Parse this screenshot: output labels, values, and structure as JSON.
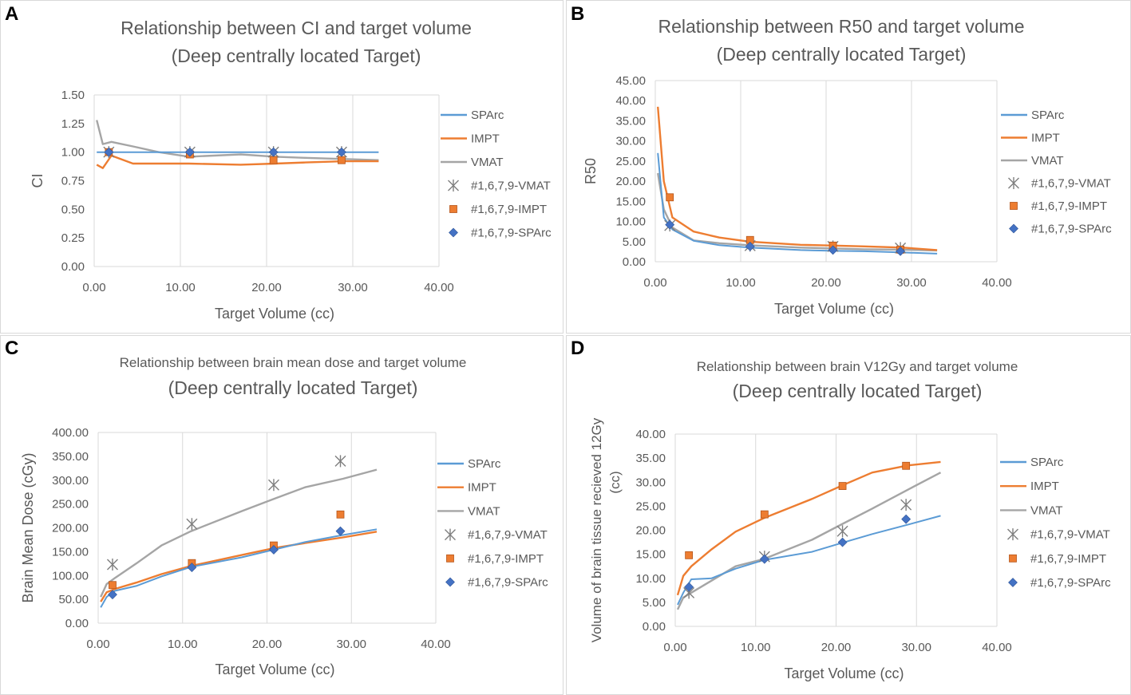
{
  "colors": {
    "sparc": "#5b9bd5",
    "impt": "#ed7d31",
    "vmat": "#a5a5a5",
    "sparc_marker": "#4472c4",
    "grid": "#d9d9d9",
    "text": "#595959"
  },
  "chart_data": [
    {
      "panel": "A",
      "type": "line",
      "title": "Relationship between CI and target volume",
      "subtitle": "(Deep centrally located Target)",
      "xlabel": "Target Volume (cc)",
      "ylabel": "CI",
      "xlim": [
        0,
        40
      ],
      "ylim": [
        0,
        1.5
      ],
      "xticks": [
        "0.00",
        "10.00",
        "20.00",
        "30.00",
        "40.00"
      ],
      "yticks": [
        "0.00",
        "0.25",
        "0.50",
        "0.75",
        "1.00",
        "1.25",
        "1.50"
      ],
      "series": [
        {
          "name": "SPArc",
          "kind": "line",
          "color": "#5b9bd5",
          "x": [
            0.3,
            1.0,
            2.0,
            4.5,
            7.5,
            11,
            17,
            21,
            24.5,
            29,
            33
          ],
          "y": [
            1.0,
            1.0,
            1.0,
            1.0,
            1.0,
            1.0,
            1.0,
            1.0,
            1.0,
            1.0,
            1.0
          ]
        },
        {
          "name": "IMPT",
          "kind": "line",
          "color": "#ed7d31",
          "x": [
            0.3,
            1.0,
            2.0,
            4.5,
            7.5,
            11,
            17,
            21,
            24.5,
            29,
            33
          ],
          "y": [
            0.89,
            0.86,
            0.97,
            0.9,
            0.9,
            0.9,
            0.89,
            0.9,
            0.91,
            0.92,
            0.92
          ]
        },
        {
          "name": "VMAT",
          "kind": "line",
          "color": "#a5a5a5",
          "x": [
            0.3,
            1.0,
            2.0,
            4.5,
            7.5,
            11,
            17,
            21,
            24.5,
            29,
            33
          ],
          "y": [
            1.28,
            1.07,
            1.09,
            1.05,
            1.0,
            0.96,
            0.98,
            0.96,
            0.95,
            0.94,
            0.93
          ]
        },
        {
          "name": "#1,6,7,9-VMAT",
          "kind": "star",
          "color": "#7f7f7f",
          "x": [
            1.7,
            11.1,
            20.8,
            28.7
          ],
          "y": [
            1.0,
            1.0,
            1.0,
            1.0
          ]
        },
        {
          "name": "#1,6,7,9-IMPT",
          "kind": "square",
          "color": "#ed7d31",
          "x": [
            1.7,
            11.1,
            20.8,
            28.7
          ],
          "y": [
            1.0,
            0.98,
            0.93,
            0.93
          ]
        },
        {
          "name": "#1,6,7,9-SPArc",
          "kind": "diamond",
          "color": "#4472c4",
          "x": [
            1.7,
            11.1,
            20.8,
            28.7
          ],
          "y": [
            1.0,
            1.0,
            1.0,
            1.0
          ]
        }
      ]
    },
    {
      "panel": "B",
      "type": "line",
      "title": "Relationship between R50 and target volume",
      "subtitle": "(Deep centrally located Target)",
      "xlabel": "Target Volume (cc)",
      "ylabel": "R50",
      "xlim": [
        0,
        40
      ],
      "ylim": [
        0,
        45
      ],
      "xticks": [
        "0.00",
        "10.00",
        "20.00",
        "30.00",
        "40.00"
      ],
      "yticks": [
        "0.00",
        "5.00",
        "10.00",
        "15.00",
        "20.00",
        "25.00",
        "30.00",
        "35.00",
        "40.00",
        "45.00"
      ],
      "series": [
        {
          "name": "SPArc",
          "kind": "line",
          "color": "#5b9bd5",
          "x": [
            0.3,
            1.0,
            2.0,
            4.5,
            7.5,
            11,
            17,
            21,
            24.5,
            29,
            33
          ],
          "y": [
            27,
            11,
            8,
            5.2,
            4.1,
            3.5,
            2.9,
            2.7,
            2.6,
            2.3,
            2.0
          ]
        },
        {
          "name": "IMPT",
          "kind": "line",
          "color": "#ed7d31",
          "x": [
            0.3,
            1.0,
            2.0,
            4.5,
            7.5,
            11,
            17,
            21,
            24.5,
            29,
            33
          ],
          "y": [
            38.5,
            20,
            11,
            7.5,
            6.0,
            5.0,
            4.2,
            4.0,
            3.8,
            3.5,
            2.9
          ]
        },
        {
          "name": "VMAT",
          "kind": "line",
          "color": "#a5a5a5",
          "x": [
            0.3,
            1.0,
            2.0,
            4.5,
            7.5,
            11,
            17,
            21,
            24.5,
            29,
            33
          ],
          "y": [
            22,
            13,
            8.5,
            5.3,
            4.6,
            4.1,
            3.5,
            3.3,
            3.1,
            3.0,
            2.8
          ]
        },
        {
          "name": "#1,6,7,9-VMAT",
          "kind": "star",
          "color": "#7f7f7f",
          "x": [
            1.7,
            11.1,
            20.8,
            28.7
          ],
          "y": [
            9.0,
            4.0,
            3.8,
            3.4
          ]
        },
        {
          "name": "#1,6,7,9-IMPT",
          "kind": "square",
          "color": "#ed7d31",
          "x": [
            1.7,
            11.1,
            20.8,
            28.7
          ],
          "y": [
            16.0,
            5.4,
            4.0,
            3.0
          ]
        },
        {
          "name": "#1,6,7,9-SPArc",
          "kind": "diamond",
          "color": "#4472c4",
          "x": [
            1.7,
            11.1,
            20.8,
            28.7
          ],
          "y": [
            9.2,
            3.8,
            2.9,
            2.6
          ]
        }
      ]
    },
    {
      "panel": "C",
      "type": "line",
      "title": "Relationship between brain mean dose and target volume",
      "subtitle": "(Deep centrally located Target)",
      "xlabel": "Target Volume (cc)",
      "ylabel": "Brain Mean Dose (cGy)",
      "xlim": [
        0,
        40
      ],
      "ylim": [
        0,
        400
      ],
      "xticks": [
        "0.00",
        "10.00",
        "20.00",
        "30.00",
        "40.00"
      ],
      "yticks": [
        "0.00",
        "50.00",
        "100.00",
        "150.00",
        "200.00",
        "250.00",
        "300.00",
        "350.00",
        "400.00"
      ],
      "series": [
        {
          "name": "SPArc",
          "kind": "line",
          "color": "#5b9bd5",
          "x": [
            0.3,
            1.0,
            2.0,
            4.5,
            7.5,
            11,
            17,
            21,
            24.5,
            29,
            33
          ],
          "y": [
            33,
            55,
            68,
            78,
            98,
            118,
            138,
            155,
            170,
            185,
            197
          ]
        },
        {
          "name": "IMPT",
          "kind": "line",
          "color": "#ed7d31",
          "x": [
            0.3,
            1.0,
            2.0,
            4.5,
            7.5,
            11,
            17,
            21,
            24.5,
            29,
            33
          ],
          "y": [
            45,
            65,
            72,
            85,
            103,
            120,
            143,
            158,
            168,
            180,
            192
          ]
        },
        {
          "name": "VMAT",
          "kind": "line",
          "color": "#a5a5a5",
          "x": [
            0.3,
            1.0,
            2.0,
            4.5,
            7.5,
            11,
            17,
            21,
            24.5,
            29,
            33
          ],
          "y": [
            55,
            82,
            95,
            125,
            163,
            193,
            235,
            262,
            285,
            303,
            322
          ]
        },
        {
          "name": "#1,6,7,9-VMAT",
          "kind": "star",
          "color": "#7f7f7f",
          "x": [
            1.7,
            11.1,
            20.8,
            28.7
          ],
          "y": [
            123,
            208,
            290,
            340
          ]
        },
        {
          "name": "#1,6,7,9-IMPT",
          "kind": "square",
          "color": "#ed7d31",
          "x": [
            1.7,
            11.1,
            20.8,
            28.7
          ],
          "y": [
            80,
            126,
            163,
            228
          ]
        },
        {
          "name": "#1,6,7,9-SPArc",
          "kind": "diamond",
          "color": "#4472c4",
          "x": [
            1.7,
            11.1,
            20.8,
            28.7
          ],
          "y": [
            60,
            117,
            154,
            193
          ]
        }
      ]
    },
    {
      "panel": "D",
      "type": "line",
      "title": "Relationship between brain V12Gy and target volume",
      "subtitle": "(Deep centrally located Target)",
      "xlabel": "Target Volume (cc)",
      "ylabel": "Volume of brain tissue recieved 12Gy (cc)",
      "ylabel_line1": "Volume of brain tissue recieved 12Gy",
      "ylabel_line2": "(cc)",
      "xlim": [
        0,
        40
      ],
      "ylim": [
        0,
        40
      ],
      "xticks": [
        "0.00",
        "10.00",
        "20.00",
        "30.00",
        "40.00"
      ],
      "yticks": [
        "0.00",
        "5.00",
        "10.00",
        "15.00",
        "20.00",
        "25.00",
        "30.00",
        "35.00",
        "40.00"
      ],
      "series": [
        {
          "name": "SPArc",
          "kind": "line",
          "color": "#5b9bd5",
          "x": [
            0.3,
            1.0,
            2.0,
            4.5,
            7.5,
            11,
            17,
            21,
            24.5,
            29,
            33
          ],
          "y": [
            4.5,
            7.0,
            9.8,
            10.0,
            12.0,
            13.8,
            15.5,
            17.5,
            19.2,
            21.2,
            23.0
          ]
        },
        {
          "name": "IMPT",
          "kind": "line",
          "color": "#ed7d31",
          "x": [
            0.3,
            1.0,
            2.0,
            4.5,
            7.5,
            11,
            17,
            21,
            24.5,
            29,
            33
          ],
          "y": [
            6.5,
            10.5,
            12.5,
            16.0,
            19.7,
            22.5,
            26.5,
            29.5,
            32.0,
            33.5,
            34.2
          ]
        },
        {
          "name": "VMAT",
          "kind": "line",
          "color": "#a5a5a5",
          "x": [
            0.3,
            1.0,
            2.0,
            4.5,
            7.5,
            11,
            17,
            21,
            24.5,
            29,
            33
          ],
          "y": [
            3.5,
            6.0,
            7.0,
            9.5,
            12.5,
            14.0,
            18.0,
            21.5,
            24.5,
            28.5,
            32.0
          ]
        },
        {
          "name": "#1,6,7,9-VMAT",
          "kind": "star",
          "color": "#7f7f7f",
          "x": [
            1.7,
            11.1,
            20.8,
            28.7
          ],
          "y": [
            7.0,
            14.5,
            19.8,
            25.3
          ]
        },
        {
          "name": "#1,6,7,9-IMPT",
          "kind": "square",
          "color": "#ed7d31",
          "x": [
            1.7,
            11.1,
            20.8,
            28.7
          ],
          "y": [
            14.8,
            23.3,
            29.2,
            33.4
          ]
        },
        {
          "name": "#1,6,7,9-SPArc",
          "kind": "diamond",
          "color": "#4472c4",
          "x": [
            1.7,
            11.1,
            20.8,
            28.7
          ],
          "y": [
            8.2,
            14.0,
            17.5,
            22.3
          ]
        }
      ]
    }
  ]
}
